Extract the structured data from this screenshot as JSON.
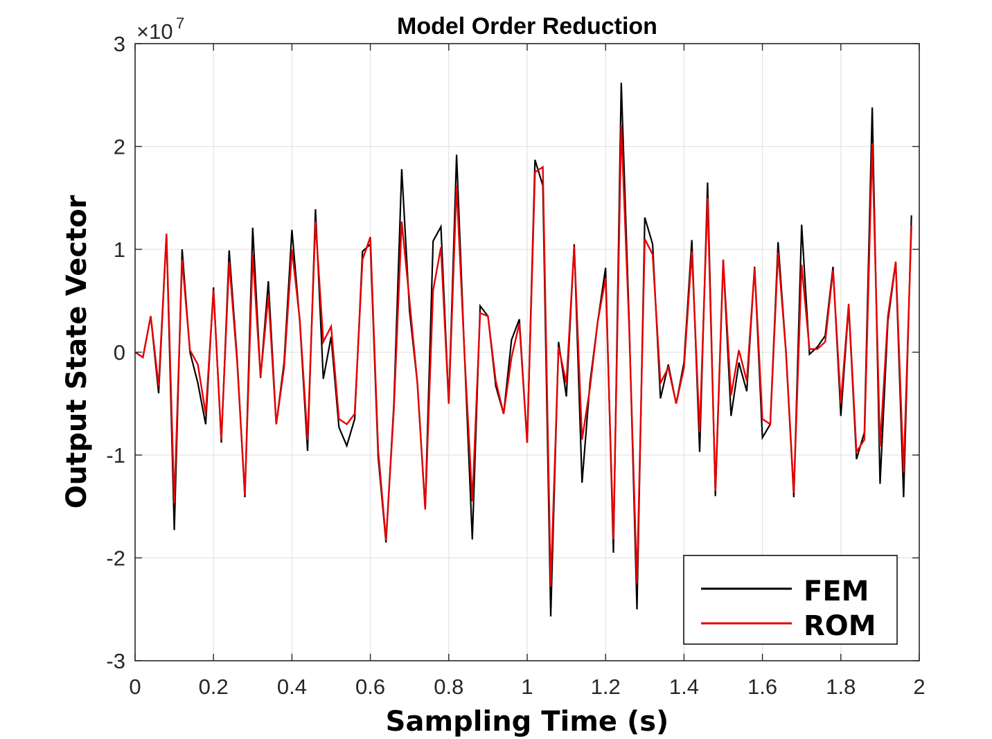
{
  "chart_data": {
    "type": "line",
    "title": "Model Order Reduction",
    "xlabel": "Sampling Time (s)",
    "ylabel": "Output State Vector",
    "y_exponent_base": "×10",
    "y_exponent_power": "7",
    "xlim": [
      0,
      2
    ],
    "ylim": [
      -3,
      3
    ],
    "x_ticks": [
      "0",
      "0.2",
      "0.4",
      "0.6",
      "0.8",
      "1",
      "1.2",
      "1.4",
      "1.6",
      "1.8",
      "2"
    ],
    "y_ticks": [
      "-3",
      "-2",
      "-1",
      "0",
      "1",
      "2",
      "3"
    ],
    "grid": true,
    "legend_position": "bottom-right",
    "x": [
      0,
      0.02,
      0.04,
      0.06,
      0.08,
      0.1,
      0.12,
      0.14,
      0.16,
      0.18,
      0.2,
      0.22,
      0.24,
      0.26,
      0.28,
      0.3,
      0.32,
      0.34,
      0.36,
      0.38,
      0.4,
      0.42,
      0.44,
      0.46,
      0.48,
      0.5,
      0.52,
      0.54,
      0.56,
      0.58,
      0.6,
      0.62,
      0.64,
      0.66,
      0.68,
      0.7,
      0.72,
      0.74,
      0.76,
      0.78,
      0.8,
      0.82,
      0.84,
      0.86,
      0.88,
      0.9,
      0.92,
      0.94,
      0.96,
      0.98,
      1.0,
      1.02,
      1.04,
      1.06,
      1.08,
      1.1,
      1.12,
      1.14,
      1.16,
      1.18,
      1.2,
      1.22,
      1.24,
      1.26,
      1.28,
      1.3,
      1.32,
      1.34,
      1.36,
      1.38,
      1.4,
      1.42,
      1.44,
      1.46,
      1.48,
      1.5,
      1.52,
      1.54,
      1.56,
      1.58,
      1.6,
      1.62,
      1.64,
      1.66,
      1.68,
      1.7,
      1.72,
      1.74,
      1.76,
      1.78,
      1.8,
      1.82,
      1.84,
      1.86,
      1.88,
      1.9,
      1.92,
      1.94,
      1.96,
      1.98
    ],
    "series": [
      {
        "name": "FEM",
        "color": "#000000",
        "values": [
          0,
          -0.05,
          0.35,
          -0.4,
          1.15,
          -1.73,
          1.0,
          0,
          -0.3,
          -0.7,
          0.63,
          -0.88,
          0.99,
          -0.05,
          -1.41,
          1.21,
          -0.25,
          0.69,
          -0.7,
          -0.1,
          1.19,
          0.3,
          -0.96,
          1.39,
          -0.26,
          0.15,
          -0.73,
          -0.91,
          -0.65,
          0.98,
          1.05,
          -1.02,
          -1.85,
          -0.5,
          1.78,
          0.4,
          -0.3,
          -1.52,
          1.08,
          1.22,
          -0.5,
          1.92,
          0,
          -1.82,
          0.45,
          0.35,
          -0.33,
          -0.6,
          0.12,
          0.32,
          -0.88,
          1.87,
          1.62,
          -2.57,
          0.1,
          -0.43,
          1.05,
          -1.27,
          -0.3,
          0.3,
          0.82,
          -1.95,
          2.62,
          0.3,
          -2.5,
          1.31,
          1.05,
          -0.45,
          -0.12,
          -0.5,
          -0.1,
          1.09,
          -0.97,
          1.65,
          -1.4,
          0.9,
          -0.62,
          -0.1,
          -0.38,
          0.83,
          -0.83,
          -0.7,
          1.07,
          0,
          -1.41,
          1.24,
          -0.02,
          0.05,
          0.16,
          0.83,
          -0.62,
          0.45,
          -1.04,
          -0.78,
          2.38,
          -1.28,
          0.3,
          0.87,
          -1.41,
          1.33
        ]
      },
      {
        "name": "ROM",
        "color": "#e60000",
        "values": [
          0,
          -0.05,
          0.35,
          -0.33,
          1.15,
          -1.47,
          0.9,
          0.02,
          -0.12,
          -0.6,
          0.6,
          -0.85,
          0.88,
          -0.08,
          -1.39,
          0.95,
          -0.24,
          0.55,
          -0.7,
          -0.15,
          1.0,
          0.32,
          -0.85,
          1.27,
          0.1,
          0.25,
          -0.65,
          -0.7,
          -0.6,
          0.9,
          1.12,
          -0.95,
          -1.83,
          -0.55,
          1.27,
          0.5,
          -0.3,
          -1.53,
          0.6,
          1.02,
          -0.5,
          1.62,
          0,
          -1.45,
          0.38,
          0.35,
          -0.28,
          -0.6,
          -0.05,
          0.28,
          -0.88,
          1.75,
          1.8,
          -2.28,
          0.05,
          -0.3,
          1.03,
          -0.85,
          -0.35,
          0.3,
          0.72,
          -1.82,
          2.2,
          0.25,
          -2.25,
          1.1,
          0.95,
          -0.3,
          -0.15,
          -0.5,
          -0.15,
          0.98,
          -0.78,
          1.5,
          -1.35,
          0.9,
          -0.42,
          0.02,
          -0.28,
          0.82,
          -0.65,
          -0.7,
          0.97,
          0,
          -1.37,
          0.85,
          0.03,
          0.03,
          0.1,
          0.8,
          -0.5,
          0.47,
          -0.97,
          -0.85,
          2.03,
          -0.92,
          0.35,
          0.88,
          -1.17,
          1.23
        ]
      }
    ]
  }
}
